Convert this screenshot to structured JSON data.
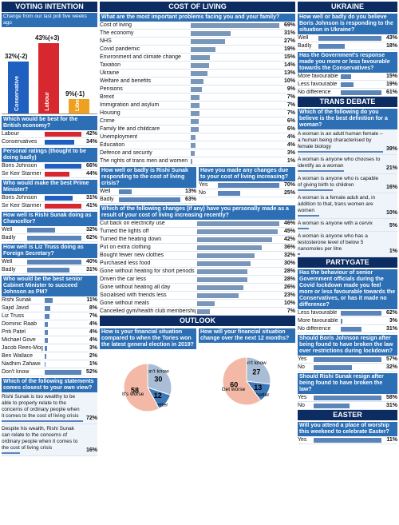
{
  "chart_data": [
    {
      "type": "column",
      "section": "VOTING INTENTION",
      "subtitle": "Change from our last poll five weeks ago",
      "categories": [
        "Conservative",
        "Labour",
        "Liberal Democrats"
      ],
      "values": [
        32,
        43,
        9
      ],
      "value_labels": [
        "32%(-2)",
        "43%(+3)",
        "9%(-1)"
      ],
      "colors": [
        "#1f5fbf",
        "#d7282f",
        "#f0a020"
      ]
    },
    {
      "type": "bar",
      "title": "Which would be best for the British economy?",
      "categories": [
        "Labour",
        "Conservatives"
      ],
      "values": [
        42,
        34
      ],
      "value_labels": [
        "42%",
        "34%"
      ],
      "colors": [
        "#d7282f",
        "#1f5fbf"
      ]
    },
    {
      "type": "bar",
      "title": "Personal ratings (thought to be doing badly)",
      "categories": [
        "Boris Johnson",
        "Sir Keir Starmer"
      ],
      "values": [
        66,
        44
      ],
      "value_labels": [
        "66%",
        "44%"
      ],
      "colors": [
        "#1f5fbf",
        "#d7282f"
      ]
    },
    {
      "type": "bar",
      "title": "Who would make the best Prime Minister?",
      "categories": [
        "Boris Johnson",
        "Sir Keir Starmer"
      ],
      "values": [
        31,
        41
      ],
      "value_labels": [
        "31%",
        "41%"
      ],
      "colors": [
        "#1f5fbf",
        "#d7282f"
      ]
    },
    {
      "type": "bar",
      "title": "How well is Rishi Sunak doing as Chancellor?",
      "categories": [
        "Well",
        "Badly"
      ],
      "values": [
        32,
        62
      ],
      "value_labels": [
        "32%",
        "62%"
      ],
      "color": "#5b84b8"
    },
    {
      "type": "bar",
      "title": "How well is Liz Truss doing as Foreign Secretary?",
      "categories": [
        "Well",
        "Badly"
      ],
      "values": [
        40,
        31
      ],
      "value_labels": [
        "40%",
        "31%"
      ],
      "color": "#5b84b8"
    },
    {
      "type": "bar",
      "title": "Who would be the best senior Cabinet Minister to succeed Johnson as PM?",
      "categories": [
        "Rishi Sunak",
        "Sajid Javid",
        "Liz Truss",
        "Dominic Raab",
        "Priti Patel",
        "Michael Gove",
        "Jacob Rees-Mogg",
        "Ben Wallace",
        "Nadhim Zahawi",
        "Don't know"
      ],
      "values": [
        11,
        8,
        7,
        4,
        4,
        4,
        3,
        2,
        1,
        52
      ],
      "value_labels": [
        "11%",
        "8%",
        "7%",
        "4%",
        "4%",
        "4%",
        "3%",
        "2%",
        "1%",
        "52%"
      ],
      "color": "#5b84b8"
    },
    {
      "type": "list",
      "title": "Which of the following statements comes closest to your own view?",
      "categories": [
        "Rishi Sunak is too wealthy to be able to properly relate to the concerns of ordinary people when it comes to the cost of living crisis",
        "Despite his wealth, Rishi Sunak can relate to the concerns of ordinary people when it comes to the cost of living crisis"
      ],
      "values": [
        72,
        16
      ],
      "value_labels": [
        "72%",
        "16%"
      ],
      "color": "#5b84b8"
    },
    {
      "type": "bar",
      "section": "COST OF LIVING",
      "title": "What are the most important problems facing you and your family?",
      "categories": [
        "Cost of living",
        "The economy",
        "NHS",
        "Covid pandemic",
        "Environment and climate change",
        "Taxation",
        "Ukraine",
        "Welfare and benefits",
        "Pensions",
        "Brexit",
        "Immigration and asylum",
        "Housing",
        "Crime",
        "Family life and childcare",
        "Unemployment",
        "Education",
        "Defence and security",
        "The rights of trans men and women"
      ],
      "values": [
        69,
        31,
        27,
        19,
        15,
        14,
        13,
        10,
        9,
        7,
        7,
        7,
        6,
        6,
        4,
        4,
        3,
        1
      ],
      "value_labels": [
        "69%",
        "31%",
        "27%",
        "19%",
        "15%",
        "14%",
        "13%",
        "10%",
        "9%",
        "7%",
        "7%",
        "7%",
        "6%",
        "6%",
        "4%",
        "4%",
        "3%",
        "1%"
      ],
      "color": "#7a96b8"
    },
    {
      "type": "bar",
      "title": "How well or badly is Rishi Sunak responding to the cost of living crisis?",
      "categories": [
        "Well",
        "Badly"
      ],
      "values": [
        13,
        63
      ],
      "value_labels": [
        "13%",
        "63%"
      ],
      "color": "#5b84b8"
    },
    {
      "type": "bar",
      "title": "Have you made any changes due to your cost of living increasing?",
      "categories": [
        "Yes",
        "No"
      ],
      "values": [
        70,
        25
      ],
      "value_labels": [
        "70%",
        "25%"
      ],
      "color": "#5b84b8"
    },
    {
      "type": "bar",
      "title": "Which of the following changes (if any) have you personally made as a result of your cost of living increasing recently?",
      "categories": [
        "Cut back on electricity use",
        "Turned the lights off",
        "Turned the heating down",
        "Put on extra clothing",
        "Bought fewer new clothes",
        "Purchased less food",
        "Gone without heating for short periods",
        "Driven the car less",
        "Gone without heating all day",
        "Socialised with friends less",
        "Gone without meals",
        "Cancelled gym/health club membership"
      ],
      "values": [
        46,
        45,
        42,
        36,
        32,
        30,
        28,
        28,
        26,
        23,
        10,
        7
      ],
      "value_labels": [
        "46%",
        "45%",
        "42%",
        "36%",
        "32%",
        "30%",
        "28%",
        "28%",
        "26%",
        "23%",
        "10%",
        "7%"
      ],
      "color": "#7a96b8"
    },
    {
      "type": "pie",
      "section": "OUTLOOK",
      "title": "How is your financial situation compared to when the Tories won the latest general election in 2019?",
      "categories": [
        "Don't know",
        "It's better",
        "It's worse"
      ],
      "values": [
        30,
        12,
        58
      ],
      "colors": [
        "#a9bed6",
        "#3f78b8",
        "#f3b9a6"
      ]
    },
    {
      "type": "pie",
      "title": "How will your financial situation change over the next 12 months?",
      "categories": [
        "Don't know",
        "Get better",
        "Get worse"
      ],
      "values": [
        27,
        13,
        60
      ],
      "colors": [
        "#a9bed6",
        "#3f78b8",
        "#f3b9a6"
      ]
    },
    {
      "type": "bar",
      "section": "UKRAINE",
      "title": "How well or badly do you believe Boris Johnson is responding to the situation in Ukraine?",
      "categories": [
        "Well",
        "Badly"
      ],
      "values": [
        43,
        18
      ],
      "value_labels": [
        "43%",
        "18%"
      ],
      "color": "#5b84b8"
    },
    {
      "type": "bar",
      "title": "Has the Government's response made you more or less favourable towards the Conservatives?",
      "categories": [
        "More favourable",
        "Less favourable",
        "No difference"
      ],
      "values": [
        15,
        19,
        61
      ],
      "value_labels": [
        "15%",
        "19%",
        "61%"
      ],
      "color": "#5b84b8"
    },
    {
      "type": "list",
      "section": "TRANS DEBATE",
      "title": "Which of the following do you believe is the best definition for a woman?",
      "categories": [
        "A woman is an adult human female – a human being characterised by female biology",
        "A woman is anyone who chooses to identify as a woman",
        "A woman is anyone who is capable of giving birth to children",
        "A woman is a female adult and, in addition to that, trans women are women",
        "A woman is anyone with a cervix",
        "A woman is anyone who has a testosterone level of below 5 nanomoles per litre"
      ],
      "values": [
        39,
        21,
        16,
        10,
        5,
        1
      ],
      "value_labels": [
        "39%",
        "21%",
        "16%",
        "10%",
        "5%",
        "1%"
      ],
      "color": "#5b84b8"
    },
    {
      "type": "bar",
      "section": "PARTYGATE",
      "title": "Has the behaviour of senior Government officials during the Covid lockdown made you feel more or less favourable towards the Conservatives, or has it made no difference?",
      "categories": [
        "Less favourable",
        "More favourable",
        "No difference"
      ],
      "values": [
        62,
        3,
        31
      ],
      "value_labels": [
        "62%",
        "3%",
        "31%"
      ],
      "color": "#5b84b8"
    },
    {
      "type": "bar",
      "title": "Should Boris Johnson resign after being found to have broken the law over restrictions during lockdown?",
      "categories": [
        "Yes",
        "No"
      ],
      "values": [
        57,
        32
      ],
      "value_labels": [
        "57%",
        "32%"
      ],
      "color": "#5b84b8"
    },
    {
      "type": "bar",
      "title": "Should Rishi Sunak resign after being found to have broken the law?",
      "categories": [
        "Yes",
        "No"
      ],
      "values": [
        58,
        31
      ],
      "value_labels": [
        "58%",
        "31%"
      ],
      "color": "#5b84b8"
    },
    {
      "type": "bar",
      "section": "EASTER",
      "title": "Will you attend a place of worship this weekend to celebrate Easter?",
      "categories": [
        "Yes"
      ],
      "values": [
        11
      ],
      "value_labels": [
        "11%"
      ],
      "color": "#5b84b8"
    }
  ]
}
